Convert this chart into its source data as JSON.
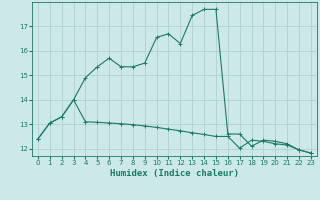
{
  "xlabel": "Humidex (Indice chaleur)",
  "bg_color": "#cce8e8",
  "grid_color": "#aacccc",
  "line_color": "#1a7a6a",
  "x": [
    0,
    1,
    2,
    3,
    4,
    5,
    6,
    7,
    8,
    9,
    10,
    11,
    12,
    13,
    14,
    15,
    16,
    17,
    18,
    19,
    20,
    21,
    22,
    23
  ],
  "y_upper": [
    12.4,
    13.05,
    13.3,
    14.0,
    14.9,
    15.35,
    15.7,
    15.35,
    15.35,
    15.5,
    16.55,
    16.7,
    16.3,
    17.45,
    17.7,
    17.7,
    12.6,
    12.6,
    12.1,
    12.35,
    12.3,
    12.2,
    11.95,
    11.82
  ],
  "y_lower": [
    12.4,
    13.05,
    13.3,
    14.0,
    13.1,
    13.08,
    13.05,
    13.02,
    12.98,
    12.93,
    12.87,
    12.8,
    12.73,
    12.65,
    12.58,
    12.5,
    12.5,
    12.02,
    12.35,
    12.3,
    12.2,
    12.15,
    11.95,
    11.82
  ],
  "ylim": [
    11.7,
    18.0
  ],
  "yticks": [
    12,
    13,
    14,
    15,
    16,
    17
  ],
  "xlim": [
    -0.5,
    23.5
  ],
  "xticks": [
    0,
    1,
    2,
    3,
    4,
    5,
    6,
    7,
    8,
    9,
    10,
    11,
    12,
    13,
    14,
    15,
    16,
    17,
    18,
    19,
    20,
    21,
    22,
    23
  ],
  "xtick_labels": [
    "0",
    "1",
    "2",
    "3",
    "4",
    "5",
    "6",
    "7",
    "8",
    "9",
    "10",
    "11",
    "12",
    "13",
    "14",
    "15",
    "16",
    "17",
    "18",
    "19",
    "20",
    "21",
    "22",
    "23"
  ]
}
